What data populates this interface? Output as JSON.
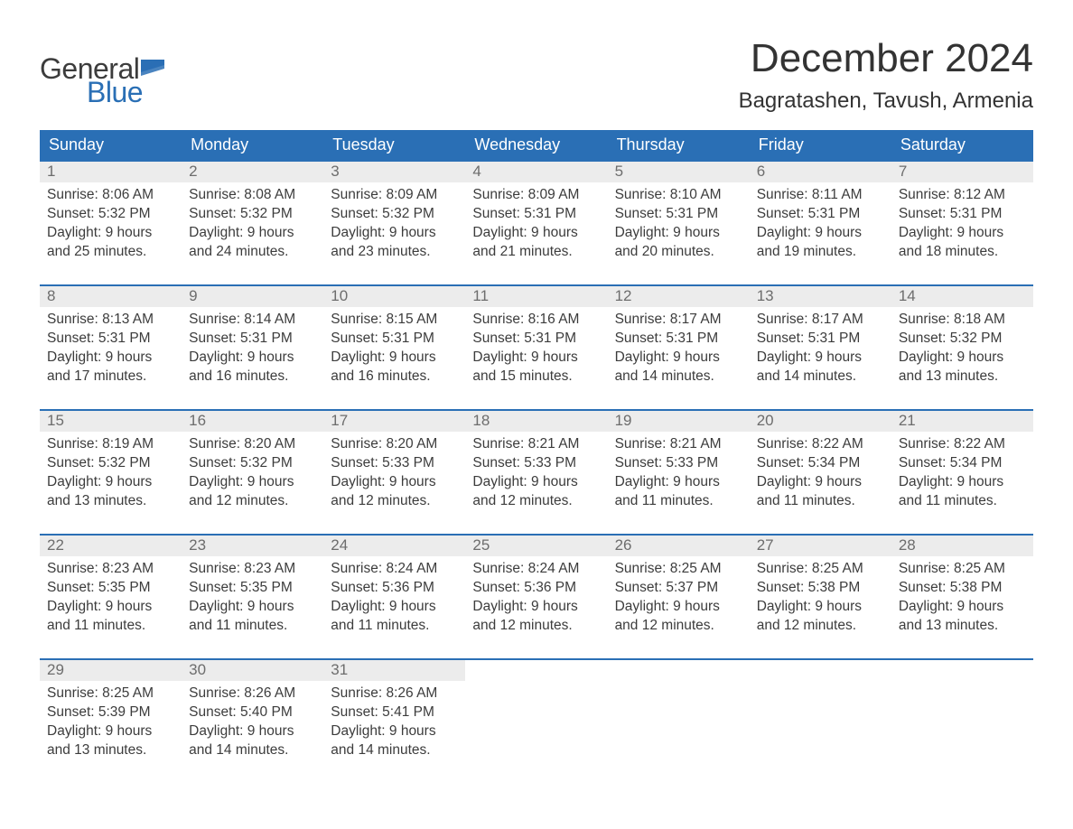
{
  "logo": {
    "text1": "General",
    "text2": "Blue",
    "flag_color": "#2a6fb5",
    "text1_color": "#3c3c3c"
  },
  "title": "December 2024",
  "location": "Bagratashen, Tavush, Armenia",
  "colors": {
    "header_bg": "#2a6fb5",
    "header_text": "#ffffff",
    "daynum_bg": "#ececec",
    "daynum_text": "#6d6d6d",
    "body_text": "#3c3c3c",
    "row_border": "#2a6fb5",
    "page_bg": "#ffffff"
  },
  "typography": {
    "title_fontsize": 44,
    "location_fontsize": 24,
    "header_fontsize": 18,
    "daynum_fontsize": 17,
    "body_fontsize": 15.5,
    "logo_fontsize": 32
  },
  "calendar": {
    "type": "table",
    "columns": [
      "Sunday",
      "Monday",
      "Tuesday",
      "Wednesday",
      "Thursday",
      "Friday",
      "Saturday"
    ],
    "weeks": [
      [
        {
          "day": "1",
          "sunrise": "8:06 AM",
          "sunset": "5:32 PM",
          "daylight": "9 hours and 25 minutes."
        },
        {
          "day": "2",
          "sunrise": "8:08 AM",
          "sunset": "5:32 PM",
          "daylight": "9 hours and 24 minutes."
        },
        {
          "day": "3",
          "sunrise": "8:09 AM",
          "sunset": "5:32 PM",
          "daylight": "9 hours and 23 minutes."
        },
        {
          "day": "4",
          "sunrise": "8:09 AM",
          "sunset": "5:31 PM",
          "daylight": "9 hours and 21 minutes."
        },
        {
          "day": "5",
          "sunrise": "8:10 AM",
          "sunset": "5:31 PM",
          "daylight": "9 hours and 20 minutes."
        },
        {
          "day": "6",
          "sunrise": "8:11 AM",
          "sunset": "5:31 PM",
          "daylight": "9 hours and 19 minutes."
        },
        {
          "day": "7",
          "sunrise": "8:12 AM",
          "sunset": "5:31 PM",
          "daylight": "9 hours and 18 minutes."
        }
      ],
      [
        {
          "day": "8",
          "sunrise": "8:13 AM",
          "sunset": "5:31 PM",
          "daylight": "9 hours and 17 minutes."
        },
        {
          "day": "9",
          "sunrise": "8:14 AM",
          "sunset": "5:31 PM",
          "daylight": "9 hours and 16 minutes."
        },
        {
          "day": "10",
          "sunrise": "8:15 AM",
          "sunset": "5:31 PM",
          "daylight": "9 hours and 16 minutes."
        },
        {
          "day": "11",
          "sunrise": "8:16 AM",
          "sunset": "5:31 PM",
          "daylight": "9 hours and 15 minutes."
        },
        {
          "day": "12",
          "sunrise": "8:17 AM",
          "sunset": "5:31 PM",
          "daylight": "9 hours and 14 minutes."
        },
        {
          "day": "13",
          "sunrise": "8:17 AM",
          "sunset": "5:31 PM",
          "daylight": "9 hours and 14 minutes."
        },
        {
          "day": "14",
          "sunrise": "8:18 AM",
          "sunset": "5:32 PM",
          "daylight": "9 hours and 13 minutes."
        }
      ],
      [
        {
          "day": "15",
          "sunrise": "8:19 AM",
          "sunset": "5:32 PM",
          "daylight": "9 hours and 13 minutes."
        },
        {
          "day": "16",
          "sunrise": "8:20 AM",
          "sunset": "5:32 PM",
          "daylight": "9 hours and 12 minutes."
        },
        {
          "day": "17",
          "sunrise": "8:20 AM",
          "sunset": "5:33 PM",
          "daylight": "9 hours and 12 minutes."
        },
        {
          "day": "18",
          "sunrise": "8:21 AM",
          "sunset": "5:33 PM",
          "daylight": "9 hours and 12 minutes."
        },
        {
          "day": "19",
          "sunrise": "8:21 AM",
          "sunset": "5:33 PM",
          "daylight": "9 hours and 11 minutes."
        },
        {
          "day": "20",
          "sunrise": "8:22 AM",
          "sunset": "5:34 PM",
          "daylight": "9 hours and 11 minutes."
        },
        {
          "day": "21",
          "sunrise": "8:22 AM",
          "sunset": "5:34 PM",
          "daylight": "9 hours and 11 minutes."
        }
      ],
      [
        {
          "day": "22",
          "sunrise": "8:23 AM",
          "sunset": "5:35 PM",
          "daylight": "9 hours and 11 minutes."
        },
        {
          "day": "23",
          "sunrise": "8:23 AM",
          "sunset": "5:35 PM",
          "daylight": "9 hours and 11 minutes."
        },
        {
          "day": "24",
          "sunrise": "8:24 AM",
          "sunset": "5:36 PM",
          "daylight": "9 hours and 11 minutes."
        },
        {
          "day": "25",
          "sunrise": "8:24 AM",
          "sunset": "5:36 PM",
          "daylight": "9 hours and 12 minutes."
        },
        {
          "day": "26",
          "sunrise": "8:25 AM",
          "sunset": "5:37 PM",
          "daylight": "9 hours and 12 minutes."
        },
        {
          "day": "27",
          "sunrise": "8:25 AM",
          "sunset": "5:38 PM",
          "daylight": "9 hours and 12 minutes."
        },
        {
          "day": "28",
          "sunrise": "8:25 AM",
          "sunset": "5:38 PM",
          "daylight": "9 hours and 13 minutes."
        }
      ],
      [
        {
          "day": "29",
          "sunrise": "8:25 AM",
          "sunset": "5:39 PM",
          "daylight": "9 hours and 13 minutes."
        },
        {
          "day": "30",
          "sunrise": "8:26 AM",
          "sunset": "5:40 PM",
          "daylight": "9 hours and 14 minutes."
        },
        {
          "day": "31",
          "sunrise": "8:26 AM",
          "sunset": "5:41 PM",
          "daylight": "9 hours and 14 minutes."
        },
        null,
        null,
        null,
        null
      ]
    ],
    "labels": {
      "sunrise_prefix": "Sunrise: ",
      "sunset_prefix": "Sunset: ",
      "daylight_prefix": "Daylight: "
    }
  }
}
